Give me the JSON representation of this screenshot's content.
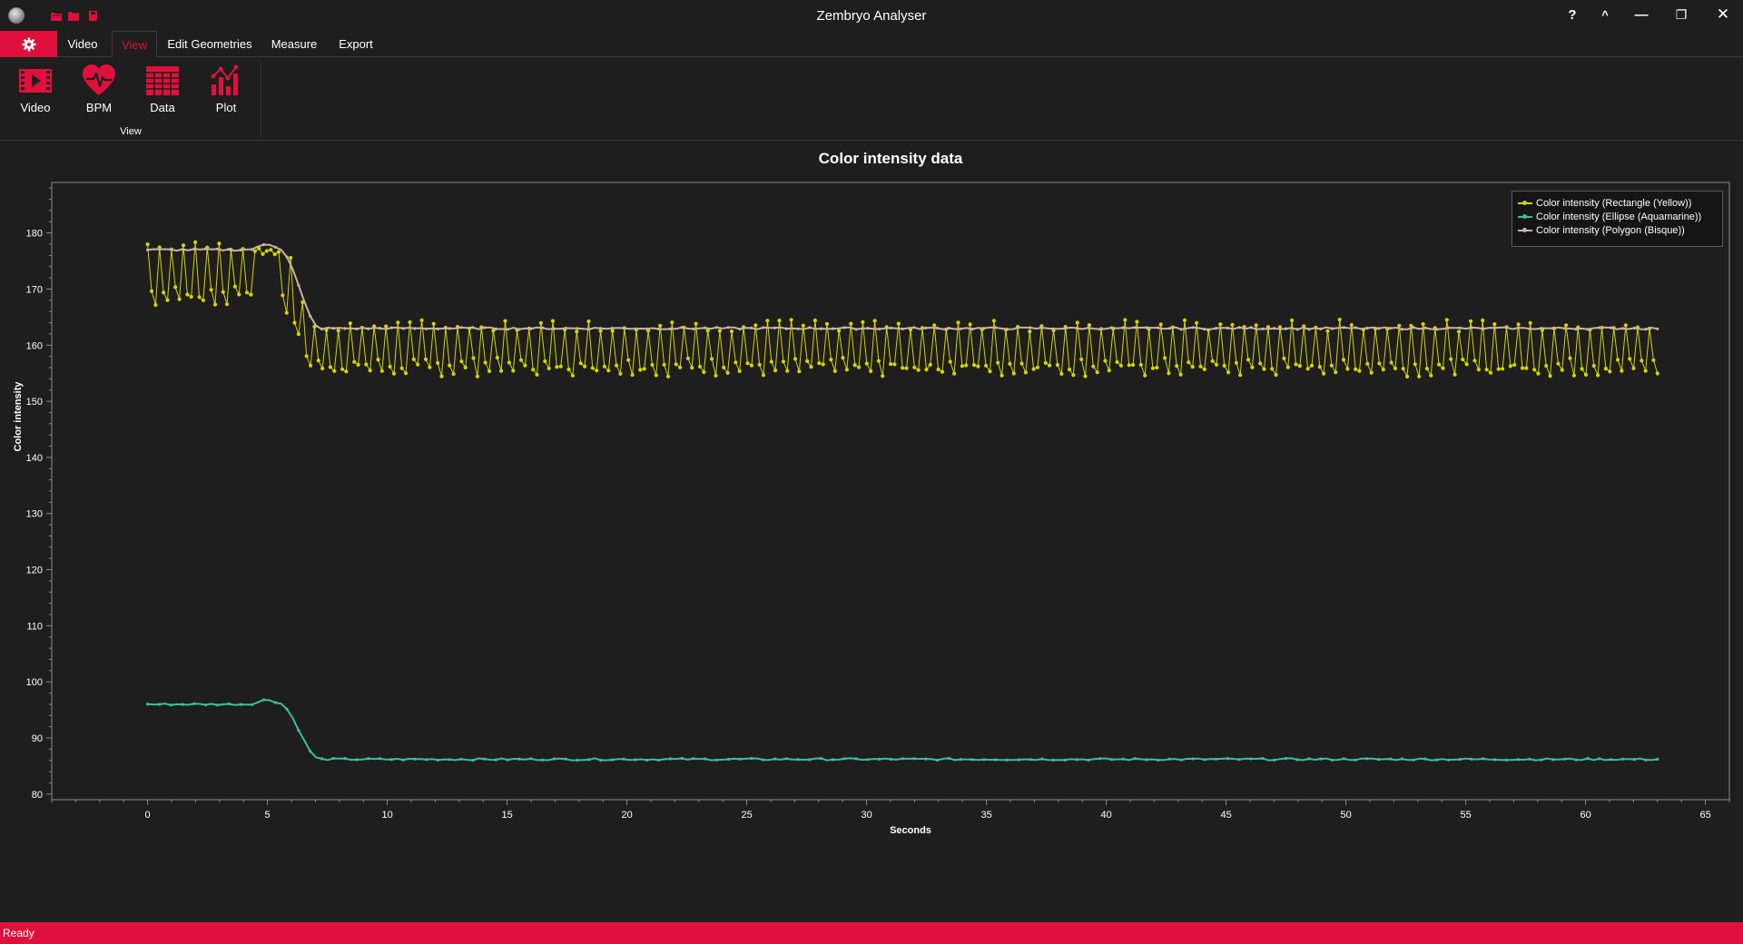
{
  "window": {
    "title": "Zembryo Analyser",
    "controls": [
      "?",
      "^",
      "—",
      "❐",
      "✕"
    ]
  },
  "tabs": [
    {
      "label": "Video",
      "active": false
    },
    {
      "label": "View",
      "active": true
    },
    {
      "label": "Edit Geometries",
      "active": false
    },
    {
      "label": "Measure",
      "active": false
    },
    {
      "label": "Export",
      "active": false
    }
  ],
  "ribbon": {
    "group_label": "View",
    "buttons": [
      {
        "label": "Video",
        "icon": "video-icon"
      },
      {
        "label": "BPM",
        "icon": "heart-rate-icon"
      },
      {
        "label": "Data",
        "icon": "table-icon"
      },
      {
        "label": "Plot",
        "icon": "plot-icon"
      }
    ]
  },
  "accent_color": "#e0103c",
  "chart_data": {
    "type": "line",
    "title": "Color intensity data",
    "xlabel": "Seconds",
    "ylabel": "Color intensity",
    "xlim": [
      -4,
      66
    ],
    "ylim": [
      79,
      189
    ],
    "xticks": [
      0,
      5,
      10,
      15,
      20,
      25,
      30,
      35,
      40,
      45,
      50,
      55,
      60,
      65
    ],
    "yticks": [
      80,
      90,
      100,
      110,
      120,
      130,
      140,
      150,
      160,
      170,
      180
    ],
    "legend_position": "top-right",
    "grid": false,
    "series": [
      {
        "name": "Color intensity (Rectangle (Yellow))",
        "color": "#d4d400",
        "pattern": "oscillating",
        "x_range": [
          0,
          63
        ],
        "points": 380,
        "baseline_before": 173,
        "baseline_after": 159.5,
        "amplitude_before": 5,
        "amplitude_after": 4,
        "transition": [
          5.5,
          7.0
        ]
      },
      {
        "name": "Color intensity (Ellipse (Aquamarine))",
        "color": "#3bbf9a",
        "pattern": "smooth",
        "x_range": [
          0,
          63
        ],
        "plateau_before": 96,
        "bump_peak": 96.8,
        "bump_at": 5,
        "plateau_after": 86.2,
        "transition": [
          5.5,
          7.2
        ]
      },
      {
        "name": "Color intensity (Polygon (Bisque))",
        "color": "#c8b4a4",
        "pattern": "smooth",
        "x_range": [
          0,
          63
        ],
        "plateau_before": 177,
        "bump_peak": 178,
        "bump_at": 5,
        "plateau_after": 163,
        "transition": [
          5.5,
          7.2
        ]
      }
    ]
  },
  "status": {
    "text": "Ready"
  }
}
